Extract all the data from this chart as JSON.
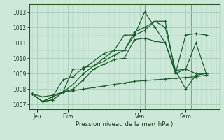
{
  "background_color": "#cce8d8",
  "grid_major_color": "#aaccbb",
  "grid_minor_color": "#bbddcc",
  "line_color": "#1a5c2a",
  "xlabel": "Pression niveau de la mer( hPa )",
  "ylim": [
    1006.7,
    1013.5
  ],
  "yticks": [
    1007,
    1008,
    1009,
    1010,
    1011,
    1012,
    1013
  ],
  "xlim": [
    -0.3,
    18.3
  ],
  "day_labels": [
    "Jeu",
    "Dim",
    "Ven",
    "Sam"
  ],
  "day_positions": [
    0.5,
    3.5,
    10.5,
    15.0
  ],
  "vline_positions": [
    1.5,
    4.0,
    11.0,
    15.5
  ],
  "series": [
    {
      "x": [
        0,
        1,
        2,
        3,
        4,
        5,
        6,
        7,
        8,
        9,
        10,
        11,
        12,
        13,
        14,
        15,
        16,
        17
      ],
      "y": [
        1007.7,
        1007.5,
        1007.6,
        1007.8,
        1007.9,
        1008.0,
        1008.1,
        1008.2,
        1008.3,
        1008.4,
        1008.5,
        1008.55,
        1008.6,
        1008.65,
        1008.7,
        1008.75,
        1008.8,
        1008.9
      ]
    },
    {
      "x": [
        0,
        1,
        2,
        3,
        4,
        5,
        6,
        7,
        8,
        9,
        10,
        11,
        12,
        13,
        14,
        15,
        16,
        17
      ],
      "y": [
        1007.7,
        1007.2,
        1007.3,
        1007.8,
        1008.0,
        1008.6,
        1009.3,
        1009.6,
        1009.9,
        1010.0,
        1011.2,
        1011.3,
        1011.1,
        1011.0,
        1009.2,
        1009.3,
        1009.0,
        1009.0
      ]
    },
    {
      "x": [
        0,
        1,
        2,
        3,
        4,
        5,
        6,
        7,
        8,
        9,
        10,
        11,
        12,
        13,
        14,
        15,
        16,
        17
      ],
      "y": [
        1007.7,
        1007.2,
        1007.3,
        1007.8,
        1009.3,
        1009.3,
        1009.8,
        1010.3,
        1010.5,
        1011.5,
        1011.5,
        1013.0,
        1012.0,
        1011.0,
        1009.0,
        1009.3,
        1011.0,
        1009.0
      ]
    },
    {
      "x": [
        0,
        1,
        2,
        3,
        4,
        5,
        6,
        7,
        8,
        9,
        10,
        11,
        12,
        13,
        14,
        15,
        16,
        17
      ],
      "y": [
        1007.7,
        1007.2,
        1007.5,
        1008.6,
        1008.8,
        1009.4,
        1009.5,
        1009.8,
        1010.2,
        1010.5,
        1011.7,
        1012.0,
        1012.4,
        1012.4,
        1009.0,
        1011.5,
        1011.6,
        1011.5
      ]
    },
    {
      "x": [
        0,
        1,
        2,
        3,
        4,
        5,
        6,
        7,
        8,
        9,
        10,
        11,
        12,
        13,
        14,
        15,
        16,
        17
      ],
      "y": [
        1007.7,
        1007.2,
        1007.5,
        1007.8,
        1008.3,
        1009.0,
        1009.5,
        1010.0,
        1010.5,
        1010.5,
        1011.5,
        1011.8,
        1012.4,
        1012.0,
        1009.2,
        1008.0,
        1008.9,
        1009.0
      ]
    }
  ]
}
